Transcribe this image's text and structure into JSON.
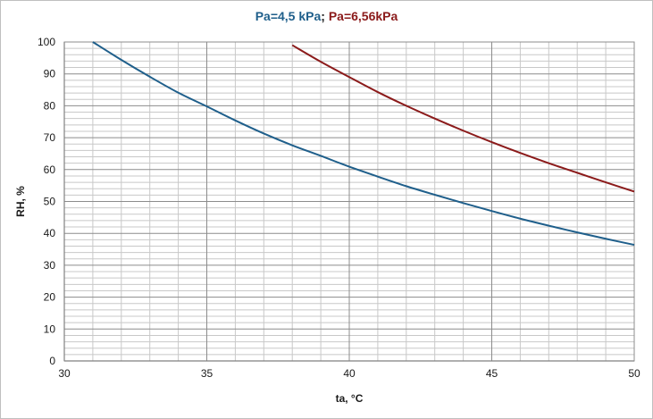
{
  "chart_data": {
    "type": "line",
    "title_parts": [
      "Pa=4,5 kPa",
      "; ",
      "Pa=6,56kPa"
    ],
    "xlabel": "ta, °C",
    "ylabel": "RH, %",
    "xlim": [
      30,
      50
    ],
    "ylim": [
      0,
      100
    ],
    "x_major_ticks": [
      30,
      35,
      40,
      45,
      50
    ],
    "y_major_ticks": [
      0,
      10,
      20,
      30,
      40,
      50,
      60,
      70,
      80,
      90,
      100
    ],
    "x_minor_step": 1,
    "y_minor_step": 2,
    "grid": true,
    "legend": "none",
    "series": [
      {
        "name": "Pa=4,5 kPa",
        "color": "#1f5f8b",
        "points": [
          [
            31,
            100
          ],
          [
            32,
            94.4
          ],
          [
            33,
            89.1
          ],
          [
            34,
            84.1
          ],
          [
            35,
            79.8
          ],
          [
            36,
            75.4
          ],
          [
            37,
            71.3
          ],
          [
            38,
            67.6
          ],
          [
            39,
            64.3
          ],
          [
            40,
            60.9
          ],
          [
            41,
            57.8
          ],
          [
            42,
            54.8
          ],
          [
            43,
            52.1
          ],
          [
            44,
            49.5
          ],
          [
            45,
            47.0
          ],
          [
            46,
            44.6
          ],
          [
            47,
            42.4
          ],
          [
            48,
            40.3
          ],
          [
            49,
            38.3
          ],
          [
            50,
            36.4
          ]
        ]
      },
      {
        "name": "Pa=6,56kPa",
        "color": "#8b1a1a",
        "points": [
          [
            38,
            99
          ],
          [
            39,
            93.8
          ],
          [
            40,
            89.0
          ],
          [
            41,
            84.3
          ],
          [
            42,
            80.0
          ],
          [
            43,
            76.0
          ],
          [
            44,
            72.2
          ],
          [
            45,
            68.6
          ],
          [
            46,
            65.2
          ],
          [
            47,
            62.0
          ],
          [
            48,
            59.0
          ],
          [
            49,
            56.0
          ],
          [
            50,
            53.1
          ]
        ]
      }
    ]
  }
}
